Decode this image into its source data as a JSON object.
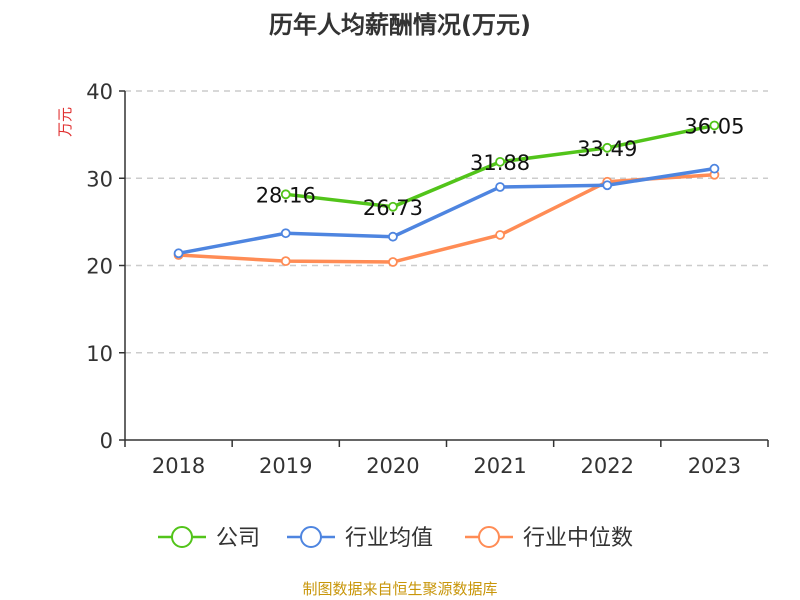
{
  "chart_data": {
    "type": "line",
    "title": "历年人均薪酬情况(万元)",
    "ylabel": "万元",
    "categories": [
      "2018",
      "2019",
      "2020",
      "2021",
      "2022",
      "2023"
    ],
    "ylim": [
      0,
      40
    ],
    "yticks": [
      0,
      10,
      20,
      30,
      40
    ],
    "grid": true,
    "legend_position": "bottom",
    "series": [
      {
        "name": "公司",
        "color": "#52c41a",
        "values": [
          null,
          28.16,
          26.73,
          31.88,
          33.49,
          36.05
        ],
        "labels": [
          "",
          "28.16",
          "26.73",
          "31.88",
          "33.49",
          "36.05"
        ]
      },
      {
        "name": "行业均值",
        "color": "#4e85e0",
        "values": [
          21.4,
          23.7,
          23.3,
          29.0,
          29.2,
          31.1
        ]
      },
      {
        "name": "行业中位数",
        "color": "#ff8c55",
        "values": [
          21.2,
          20.5,
          20.4,
          23.5,
          29.6,
          30.4
        ]
      }
    ]
  },
  "source": "制图数据来自恒生聚源数据库"
}
